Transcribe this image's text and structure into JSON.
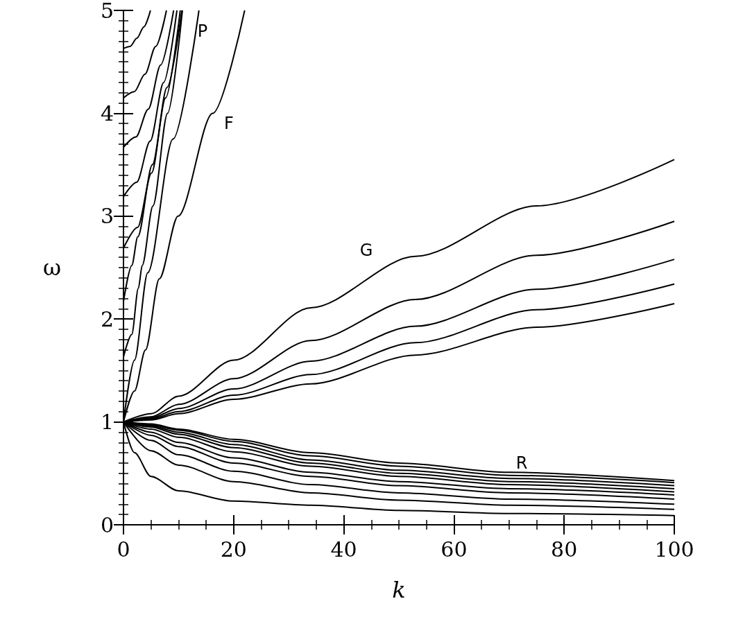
{
  "chart_data": {
    "type": "line",
    "xlabel": "k",
    "ylabel": "ω",
    "xlim": [
      0,
      100
    ],
    "ylim": [
      0,
      5
    ],
    "marker": "none",
    "xticks": [
      0,
      {
        "value": 5,
        "label": null
      },
      {
        "value": 10,
        "label": null
      },
      {
        "value": 15,
        "label": null
      },
      20,
      {
        "value": 25,
        "label": null
      },
      {
        "value": 30,
        "label": null
      },
      {
        "value": 35,
        "label": null
      },
      40,
      {
        "value": 45,
        "label": null
      },
      {
        "value": 50,
        "label": null
      },
      {
        "value": 55,
        "label": null
      },
      60,
      {
        "value": 65,
        "label": null
      },
      {
        "value": 70,
        "label": null
      },
      {
        "value": 75,
        "label": null
      },
      80,
      {
        "value": 85,
        "label": null
      },
      {
        "value": 90,
        "label": null
      },
      {
        "value": 95,
        "label": null
      },
      100
    ],
    "yticks": [
      0,
      {
        "value": 0.1,
        "label": null
      },
      {
        "value": 0.2,
        "label": null
      },
      {
        "value": 0.3,
        "label": null
      },
      {
        "value": 0.4,
        "label": null
      },
      {
        "value": 0.5,
        "label": null
      },
      {
        "value": 0.6,
        "label": null
      },
      {
        "value": 0.7,
        "label": null
      },
      {
        "value": 0.8,
        "label": null
      },
      {
        "value": 0.9,
        "label": null
      },
      1,
      {
        "value": 1.1,
        "label": null
      },
      {
        "value": 1.2,
        "label": null
      },
      {
        "value": 1.3,
        "label": null
      },
      {
        "value": 1.4,
        "label": null
      },
      {
        "value": 1.5,
        "label": null
      },
      {
        "value": 1.6,
        "label": null
      },
      {
        "value": 1.7,
        "label": null
      },
      {
        "value": 1.8,
        "label": null
      },
      {
        "value": 1.9,
        "label": null
      },
      2,
      {
        "value": 2.1,
        "label": null
      },
      {
        "value": 2.2,
        "label": null
      },
      {
        "value": 2.3,
        "label": null
      },
      {
        "value": 2.4,
        "label": null
      },
      {
        "value": 2.5,
        "label": null
      },
      {
        "value": 2.6,
        "label": null
      },
      {
        "value": 2.7,
        "label": null
      },
      {
        "value": 2.8,
        "label": null
      },
      {
        "value": 2.9,
        "label": null
      },
      3,
      {
        "value": 3.1,
        "label": null
      },
      {
        "value": 3.2,
        "label": null
      },
      {
        "value": 3.3,
        "label": null
      },
      {
        "value": 3.4,
        "label": null
      },
      {
        "value": 3.5,
        "label": null
      },
      {
        "value": 3.6,
        "label": null
      },
      {
        "value": 3.7,
        "label": null
      },
      {
        "value": 3.8,
        "label": null
      },
      {
        "value": 3.9,
        "label": null
      },
      4,
      {
        "value": 4.1,
        "label": null
      },
      {
        "value": 4.2,
        "label": null
      },
      {
        "value": 4.3,
        "label": null
      },
      {
        "value": 4.4,
        "label": null
      },
      {
        "value": 4.5,
        "label": null
      },
      {
        "value": 4.6,
        "label": null
      },
      {
        "value": 4.7,
        "label": null
      },
      {
        "value": 4.8,
        "label": null
      },
      {
        "value": 4.9,
        "label": null
      },
      5
    ],
    "annotations": [
      "P",
      "F",
      "G",
      "R"
    ],
    "series": [
      {
        "color": "#000000",
        "x": [
          0,
          5,
          10,
          20,
          34,
          50,
          70,
          100
        ],
        "values": [
          1,
          0.98,
          0.93,
          0.83,
          0.7,
          0.6,
          0.51,
          0.43
        ]
      },
      {
        "color": "#000000",
        "x": [
          0,
          5,
          10,
          20,
          34,
          50,
          70,
          100
        ],
        "values": [
          1,
          0.97,
          0.92,
          0.81,
          0.67,
          0.57,
          0.48,
          0.41
        ]
      },
      {
        "color": "#000000",
        "x": [
          0,
          5,
          10,
          20,
          34,
          50,
          70,
          100
        ],
        "values": [
          1,
          0.96,
          0.9,
          0.78,
          0.63,
          0.53,
          0.45,
          0.38
        ]
      },
      {
        "color": "#000000",
        "x": [
          0,
          5,
          10,
          20,
          34,
          50,
          70,
          100
        ],
        "values": [
          1,
          0.95,
          0.88,
          0.75,
          0.6,
          0.5,
          0.42,
          0.35
        ]
      },
      {
        "color": "#000000",
        "x": [
          0,
          5,
          10,
          20,
          34,
          50,
          70,
          100
        ],
        "values": [
          1,
          0.93,
          0.85,
          0.71,
          0.57,
          0.47,
          0.39,
          0.32
        ]
      },
      {
        "color": "#000000",
        "x": [
          0,
          5,
          10,
          20,
          34,
          50,
          70,
          100
        ],
        "values": [
          1,
          0.9,
          0.8,
          0.65,
          0.51,
          0.42,
          0.35,
          0.29
        ]
      },
      {
        "color": "#000000",
        "x": [
          0,
          5,
          10,
          20,
          34,
          50,
          70,
          100
        ],
        "values": [
          1,
          0.87,
          0.76,
          0.6,
          0.47,
          0.38,
          0.31,
          0.25
        ]
      },
      {
        "color": "#000000",
        "x": [
          0,
          5,
          10,
          20,
          34,
          50,
          70,
          100
        ],
        "values": [
          1,
          0.82,
          0.68,
          0.52,
          0.39,
          0.31,
          0.25,
          0.2
        ]
      },
      {
        "color": "#000000",
        "x": [
          0,
          5,
          10,
          20,
          34,
          50,
          70,
          100
        ],
        "values": [
          1,
          0.72,
          0.58,
          0.42,
          0.31,
          0.24,
          0.19,
          0.15
        ]
      },
      {
        "color": "#000000",
        "x": [
          0,
          2,
          5,
          10,
          20,
          34,
          50,
          70,
          100
        ],
        "values": [
          1,
          0.7,
          0.47,
          0.33,
          0.23,
          0.19,
          0.14,
          0.11,
          0.09
        ]
      },
      {
        "color": "#000000",
        "x": [
          0,
          5,
          10,
          20,
          34,
          53,
          75,
          100
        ],
        "values": [
          1,
          1.08,
          1.25,
          1.6,
          2.11,
          2.61,
          3.1,
          3.55
        ]
      },
      {
        "color": "#000000",
        "x": [
          0,
          5,
          10,
          20,
          34,
          53,
          75,
          100
        ],
        "values": [
          1,
          1.05,
          1.17,
          1.42,
          1.79,
          2.19,
          2.62,
          2.95
        ]
      },
      {
        "color": "#000000",
        "x": [
          0,
          5,
          10,
          20,
          34,
          53,
          75,
          100
        ],
        "values": [
          1,
          1.04,
          1.13,
          1.32,
          1.59,
          1.93,
          2.29,
          2.58
        ]
      },
      {
        "color": "#000000",
        "x": [
          0,
          5,
          10,
          20,
          34,
          53,
          75,
          100
        ],
        "values": [
          1,
          1.03,
          1.1,
          1.26,
          1.46,
          1.77,
          2.09,
          2.34
        ]
      },
      {
        "color": "#000000",
        "x": [
          0,
          5,
          10,
          20,
          34,
          53,
          75,
          100
        ],
        "values": [
          1,
          1.02,
          1.08,
          1.22,
          1.37,
          1.65,
          1.92,
          2.15
        ]
      },
      {
        "color": "#000000",
        "x": [
          0,
          2,
          4,
          6.5,
          9.9,
          16.2,
          22
        ],
        "values": [
          1,
          1.3,
          1.7,
          2.39,
          3,
          4,
          5
        ]
      },
      {
        "color": "#000000",
        "x": [
          0,
          2,
          4.4,
          9,
          13.7
        ],
        "values": [
          1,
          1.6,
          2.45,
          3.75,
          5
        ]
      },
      {
        "color": "#000000",
        "x": [
          0,
          1.2,
          2.45,
          3.7,
          4.9
        ],
        "values": [
          4.63,
          4.65,
          4.73,
          4.84,
          5
        ]
      },
      {
        "color": "#000000",
        "x": [
          0,
          1.95,
          3.9,
          5.85,
          7.8
        ],
        "values": [
          4.15,
          4.21,
          4.38,
          4.65,
          5
        ]
      },
      {
        "color": "#000000",
        "x": [
          0,
          2.25,
          4.5,
          6.75,
          9.1
        ],
        "values": [
          3.67,
          3.77,
          4.04,
          4.47,
          5
        ]
      },
      {
        "color": "#000000",
        "x": [
          0,
          2.4,
          4.85,
          7.3,
          9.7
        ],
        "values": [
          3.19,
          3.33,
          3.73,
          4.3,
          5
        ]
      },
      {
        "color": "#000000",
        "x": [
          0,
          2.55,
          5.1,
          7.65,
          10.3
        ],
        "values": [
          2.69,
          2.89,
          3.42,
          4.15,
          5
        ]
      },
      {
        "color": "#000000",
        "x": [
          0,
          1.5,
          2.6,
          5.25,
          7.9,
          10.6
        ],
        "values": [
          2.17,
          2.52,
          2.8,
          3.5,
          4.25,
          5
        ]
      },
      {
        "color": "#000000",
        "x": [
          0,
          1.5,
          2.7,
          3.4,
          5.35,
          8,
          10.7
        ],
        "values": [
          1.63,
          1.85,
          2.3,
          2.52,
          3.1,
          4,
          5
        ]
      }
    ]
  }
}
